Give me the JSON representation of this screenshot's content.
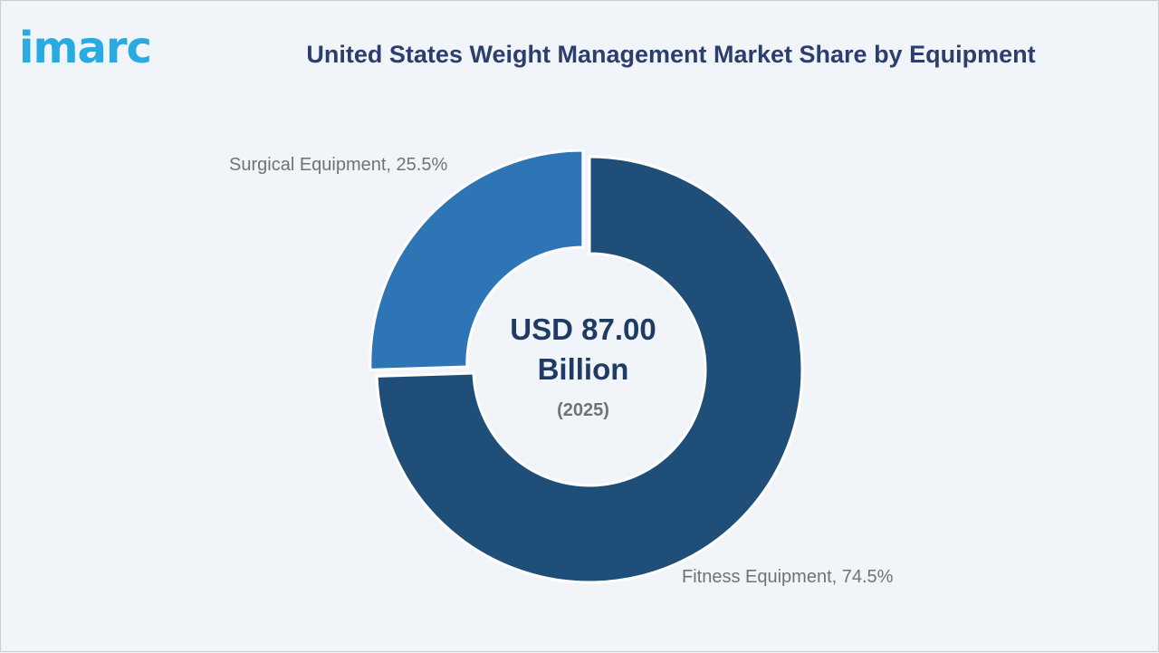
{
  "brand": {
    "logo_text": "imarc"
  },
  "chart_data": {
    "type": "pie",
    "title": "United States Weight Management Market Share by Equipment",
    "categories": [
      "Fitness Equipment",
      "Surgical Equipment"
    ],
    "values": [
      74.5,
      25.5
    ],
    "unit": "%",
    "labels": [
      "Fitness Equipment, 74.5%",
      "Surgical Equipment, 25.5%"
    ],
    "colors": [
      "#1f4e78",
      "#2e75b6"
    ],
    "center": {
      "value_line1": "USD 87.00",
      "value_line2": "Billion",
      "year": "(2025)"
    }
  }
}
